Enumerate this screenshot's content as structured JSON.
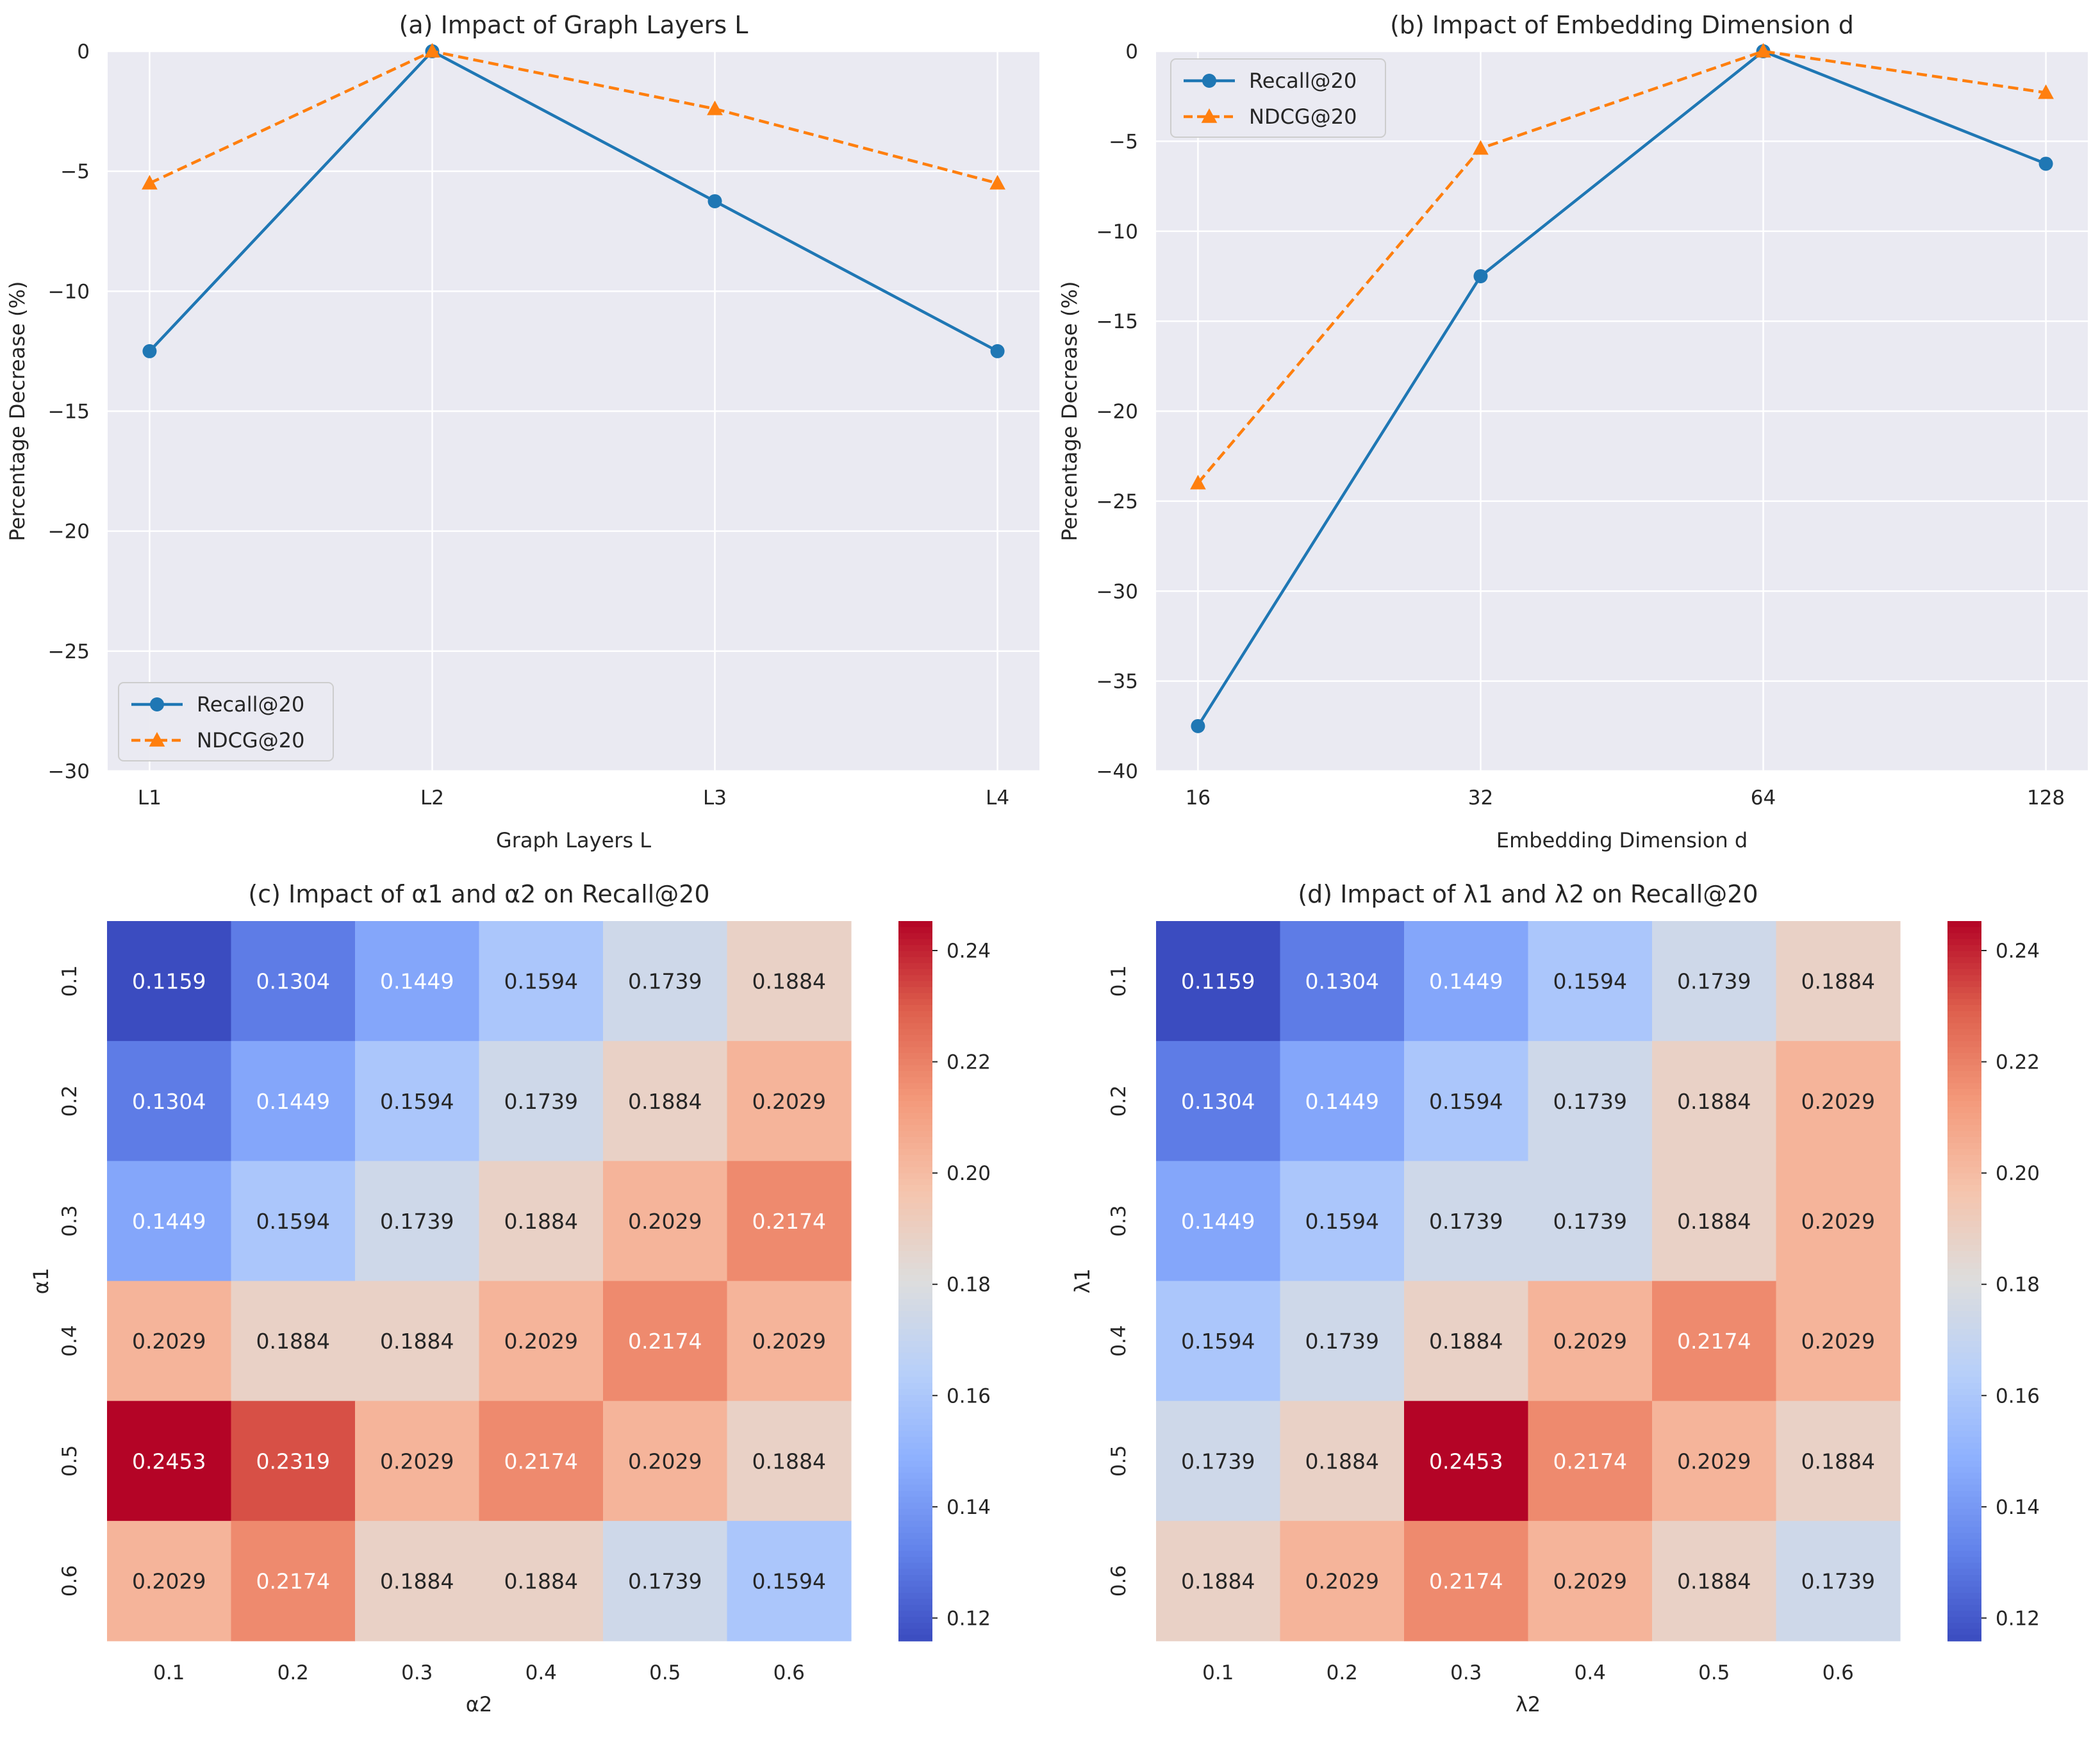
{
  "chart_data": [
    {
      "id": "a",
      "type": "line",
      "title": "(a) Impact of Graph Layers L",
      "xlabel": "Graph Layers L",
      "ylabel": "Percentage Decrease (%)",
      "categories": [
        "L1",
        "L2",
        "L3",
        "L4"
      ],
      "ylim": [
        -30,
        0
      ],
      "yticks": [
        0,
        -5,
        -10,
        -15,
        -20,
        -25,
        -30
      ],
      "ytick_labels": [
        "0",
        "−5",
        "−10",
        "−15",
        "−20",
        "−25",
        "−30"
      ],
      "grid": true,
      "legend_position": "lower-left",
      "series": [
        {
          "name": "Recall@20",
          "color": "#1f77b4",
          "marker": "circle",
          "linestyle": "solid",
          "values": [
            -12.5,
            0,
            -6.25,
            -12.5
          ]
        },
        {
          "name": "NDCG@20",
          "color": "#ff7f0e",
          "marker": "triangle",
          "linestyle": "dashed",
          "values": [
            -5.5,
            0,
            -2.4,
            -5.5
          ]
        }
      ]
    },
    {
      "id": "b",
      "type": "line",
      "title": "(b) Impact of Embedding Dimension d",
      "xlabel": "Embedding Dimension d",
      "ylabel": "Percentage Decrease (%)",
      "categories": [
        "16",
        "32",
        "64",
        "128"
      ],
      "ylim": [
        -40,
        0
      ],
      "yticks": [
        0,
        -5,
        -10,
        -15,
        -20,
        -25,
        -30,
        -35,
        -40
      ],
      "ytick_labels": [
        "0",
        "−5",
        "−10",
        "−15",
        "−20",
        "−25",
        "−30",
        "−35",
        "−40"
      ],
      "grid": true,
      "legend_position": "upper-left",
      "series": [
        {
          "name": "Recall@20",
          "color": "#1f77b4",
          "marker": "circle",
          "linestyle": "solid",
          "values": [
            -37.5,
            -12.5,
            0,
            -6.25
          ]
        },
        {
          "name": "NDCG@20",
          "color": "#ff7f0e",
          "marker": "triangle",
          "linestyle": "dashed",
          "values": [
            -24,
            -5.4,
            0,
            -2.3
          ]
        }
      ]
    },
    {
      "id": "c",
      "type": "heatmap",
      "title": "(c) Impact of α1 and α2 on Recall@20",
      "xlabel": "α2",
      "ylabel": "α1",
      "xticks": [
        "0.1",
        "0.2",
        "0.3",
        "0.4",
        "0.5",
        "0.6"
      ],
      "yticks": [
        "0.1",
        "0.2",
        "0.3",
        "0.4",
        "0.5",
        "0.6"
      ],
      "colormap": "coolwarm",
      "vmin": 0.1159,
      "vmax": 0.2453,
      "colorbar_ticks": [
        "0.24",
        "0.22",
        "0.20",
        "0.18",
        "0.16",
        "0.14",
        "0.12"
      ],
      "colorbar_tick_values": [
        0.24,
        0.22,
        0.2,
        0.18,
        0.16,
        0.14,
        0.12
      ],
      "values": [
        [
          "0.1159",
          "0.1304",
          "0.1449",
          "0.1594",
          "0.1739",
          "0.1884"
        ],
        [
          "0.1304",
          "0.1449",
          "0.1594",
          "0.1739",
          "0.1884",
          "0.2029"
        ],
        [
          "0.1449",
          "0.1594",
          "0.1739",
          "0.1884",
          "0.2029",
          "0.2174"
        ],
        [
          "0.2029",
          "0.1884",
          "0.1884",
          "0.2029",
          "0.2174",
          "0.2029"
        ],
        [
          "0.2453",
          "0.2319",
          "0.2029",
          "0.2174",
          "0.2029",
          "0.1884"
        ],
        [
          "0.2029",
          "0.2174",
          "0.1884",
          "0.1884",
          "0.1739",
          "0.1594"
        ]
      ]
    },
    {
      "id": "d",
      "type": "heatmap",
      "title": "(d) Impact of λ1 and λ2 on Recall@20",
      "xlabel": "λ2",
      "ylabel": "λ1",
      "xticks": [
        "0.1",
        "0.2",
        "0.3",
        "0.4",
        "0.5",
        "0.6"
      ],
      "yticks": [
        "0.1",
        "0.2",
        "0.3",
        "0.4",
        "0.5",
        "0.6"
      ],
      "colormap": "coolwarm",
      "vmin": 0.1159,
      "vmax": 0.2453,
      "colorbar_ticks": [
        "0.24",
        "0.22",
        "0.20",
        "0.18",
        "0.16",
        "0.14",
        "0.12"
      ],
      "colorbar_tick_values": [
        0.24,
        0.22,
        0.2,
        0.18,
        0.16,
        0.14,
        0.12
      ],
      "values": [
        [
          "0.1159",
          "0.1304",
          "0.1449",
          "0.1594",
          "0.1739",
          "0.1884"
        ],
        [
          "0.1304",
          "0.1449",
          "0.1594",
          "0.1739",
          "0.1884",
          "0.2029"
        ],
        [
          "0.1449",
          "0.1594",
          "0.1739",
          "0.1739",
          "0.1884",
          "0.2029"
        ],
        [
          "0.1594",
          "0.1739",
          "0.1884",
          "0.2029",
          "0.2174",
          "0.2029"
        ],
        [
          "0.1739",
          "0.1884",
          "0.2453",
          "0.2174",
          "0.2029",
          "0.1884"
        ],
        [
          "0.1884",
          "0.2029",
          "0.2174",
          "0.2029",
          "0.1884",
          "0.1739"
        ]
      ]
    }
  ]
}
